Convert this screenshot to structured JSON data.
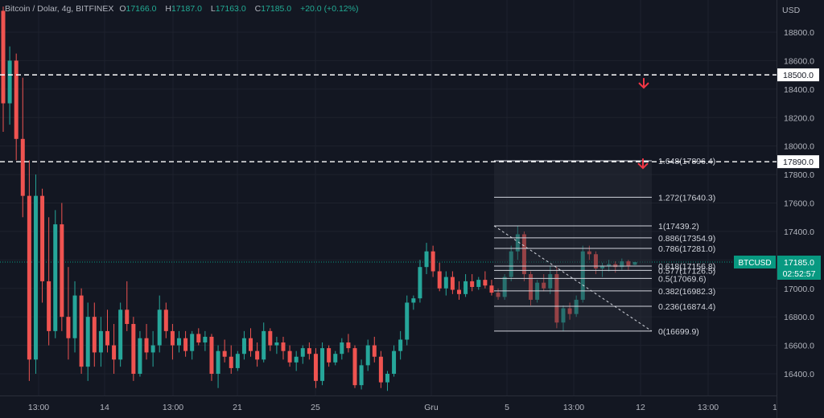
{
  "header": {
    "symbol": "Bitcoin / Dolar, 4g, BITFINEX",
    "o_label": "O",
    "o_value": "17166.0",
    "h_label": "H",
    "h_value": "17187.0",
    "l_label": "L",
    "l_value": "17163.0",
    "c_label": "C",
    "c_value": "17185.0",
    "change": "+20.0 (+0.12%)"
  },
  "currency": "USD",
  "colors": {
    "background": "#131722",
    "grid": "#1e222d",
    "text": "#b2b5be",
    "up": "#26a69a",
    "down": "#ef5350",
    "price_tag": "#089981",
    "alert_arrow": "#f23645",
    "fib": "#d1d4dc"
  },
  "price_axis": {
    "ticks": [
      "18800.0",
      "18600.0",
      "18400.0",
      "18200.0",
      "18000.0",
      "17800.0",
      "17600.0",
      "17400.0",
      "17200.0",
      "17000.0",
      "16800.0",
      "16600.0",
      "16400.0"
    ],
    "current_label": "BTCUSD",
    "current_price": "17185.0",
    "countdown": "02:52:57"
  },
  "time_axis": {
    "labels": [
      "13:00",
      "14",
      "13:00",
      "21",
      "25",
      "Gru",
      "5",
      "13:00",
      "12",
      "13:00"
    ]
  },
  "horizontal_lines": [
    {
      "price": 18500,
      "label": "18500.0"
    },
    {
      "price": 17890,
      "label": "17890.0"
    }
  ],
  "fibonacci": {
    "levels": [
      {
        "label": "1.648(17896.4)",
        "price": 17896.4
      },
      {
        "label": "1.272(17640.3)",
        "price": 17640.3
      },
      {
        "label": "1(17439.2)",
        "price": 17439.2
      },
      {
        "label": "0.886(17354.9)",
        "price": 17354.9
      },
      {
        "label": "0.786(17281.0)",
        "price": 17281.0
      },
      {
        "label": "0.618(17156.8)",
        "price": 17156.8
      },
      {
        "label": "0.5(17069.6)",
        "price": 17069.6
      },
      {
        "label": "0.382(16982.3)",
        "price": 16982.3
      },
      {
        "label": "0.236(16874.4)",
        "price": 16874.4
      },
      {
        "label": "0(16699.9)",
        "price": 16699.9
      }
    ],
    "extra_label": "0.577(17126.5)"
  },
  "chart_data": {
    "type": "candlestick",
    "timeframe": "4g",
    "x_labels": [
      "13:00",
      "14",
      "13:00",
      "21",
      "25",
      "Gru",
      "5",
      "13:00",
      "12",
      "13:00"
    ],
    "ylim": [
      16280,
      18980
    ],
    "candles": [
      [
        18950,
        18980,
        18100,
        18300
      ],
      [
        18300,
        18700,
        18150,
        18600
      ],
      [
        18600,
        18650,
        17900,
        18050
      ],
      [
        18050,
        18480,
        17500,
        17650
      ],
      [
        17650,
        17900,
        16350,
        16500
      ],
      [
        16500,
        17800,
        16400,
        17650
      ],
      [
        17650,
        17700,
        16900,
        17050
      ],
      [
        17050,
        17500,
        16600,
        16700
      ],
      [
        16700,
        17550,
        16650,
        17450
      ],
      [
        17450,
        17600,
        16700,
        16800
      ],
      [
        16800,
        17150,
        16500,
        16650
      ],
      [
        16650,
        17050,
        16550,
        16950
      ],
      [
        16950,
        17000,
        16400,
        16450
      ],
      [
        16450,
        16900,
        16350,
        16800
      ],
      [
        16800,
        16900,
        16450,
        16550
      ],
      [
        16550,
        16800,
        16450,
        16700
      ],
      [
        16700,
        16850,
        16550,
        16600
      ],
      [
        16600,
        16750,
        16400,
        16500
      ],
      [
        16500,
        16900,
        16450,
        16850
      ],
      [
        16850,
        17050,
        16700,
        16750
      ],
      [
        16750,
        16800,
        16350,
        16400
      ],
      [
        16400,
        16700,
        16380,
        16650
      ],
      [
        16650,
        16750,
        16500,
        16550
      ],
      [
        16550,
        16700,
        16450,
        16600
      ],
      [
        16600,
        16950,
        16550,
        16850
      ],
      [
        16850,
        16900,
        16650,
        16700
      ],
      [
        16700,
        16750,
        16500,
        16600
      ],
      [
        16600,
        16700,
        16550,
        16650
      ],
      [
        16650,
        16700,
        16520,
        16560
      ],
      [
        16560,
        16700,
        16500,
        16680
      ],
      [
        16680,
        16720,
        16600,
        16620
      ],
      [
        16620,
        16700,
        16560,
        16660
      ],
      [
        16660,
        16680,
        16350,
        16400
      ],
      [
        16400,
        16600,
        16300,
        16560
      ],
      [
        16560,
        16640,
        16480,
        16520
      ],
      [
        16520,
        16600,
        16400,
        16440
      ],
      [
        16440,
        16560,
        16420,
        16540
      ],
      [
        16540,
        16700,
        16500,
        16650
      ],
      [
        16650,
        16720,
        16520,
        16560
      ],
      [
        16560,
        16620,
        16450,
        16500
      ],
      [
        16500,
        16760,
        16480,
        16700
      ],
      [
        16700,
        16720,
        16560,
        16600
      ],
      [
        16600,
        16660,
        16540,
        16620
      ],
      [
        16620,
        16660,
        16500,
        16560
      ],
      [
        16560,
        16600,
        16450,
        16480
      ],
      [
        16480,
        16560,
        16420,
        16520
      ],
      [
        16520,
        16600,
        16470,
        16580
      ],
      [
        16580,
        16620,
        16500,
        16540
      ],
      [
        16540,
        16580,
        16300,
        16350
      ],
      [
        16350,
        16620,
        16320,
        16580
      ],
      [
        16580,
        16600,
        16450,
        16480
      ],
      [
        16480,
        16560,
        16460,
        16540
      ],
      [
        16540,
        16650,
        16500,
        16620
      ],
      [
        16620,
        16680,
        16550,
        16580
      ],
      [
        16580,
        16600,
        16300,
        16320
      ],
      [
        16320,
        16500,
        16290,
        16460
      ],
      [
        16460,
        16640,
        16420,
        16600
      ],
      [
        16600,
        16660,
        16480,
        16520
      ],
      [
        16520,
        16560,
        16300,
        16340
      ],
      [
        16340,
        16420,
        16280,
        16400
      ],
      [
        16400,
        16600,
        16380,
        16560
      ],
      [
        16560,
        16700,
        16500,
        16640
      ],
      [
        16640,
        16950,
        16600,
        16900
      ],
      [
        16900,
        16950,
        16850,
        16930
      ],
      [
        16930,
        17200,
        16900,
        17150
      ],
      [
        17150,
        17320,
        17100,
        17260
      ],
      [
        17260,
        17300,
        17080,
        17120
      ],
      [
        17120,
        17180,
        16980,
        17000
      ],
      [
        17000,
        17120,
        16950,
        17080
      ],
      [
        17080,
        17120,
        16960,
        16990
      ],
      [
        16990,
        17050,
        16920,
        16960
      ],
      [
        16960,
        17100,
        16940,
        17050
      ],
      [
        17050,
        17100,
        16980,
        17010
      ],
      [
        17010,
        17080,
        16990,
        17060
      ],
      [
        17060,
        17120,
        17000,
        17020
      ],
      [
        17020,
        17060,
        16950,
        16970
      ],
      [
        16970,
        17000,
        16920,
        16940
      ],
      [
        16940,
        17100,
        16920,
        17080
      ],
      [
        17080,
        17300,
        17050,
        17260
      ],
      [
        17260,
        17440,
        17200,
        17380
      ],
      [
        17380,
        17400,
        17050,
        17100
      ],
      [
        17100,
        17120,
        16880,
        16920
      ],
      [
        16920,
        17060,
        16900,
        17040
      ],
      [
        17040,
        17100,
        16980,
        17000
      ],
      [
        17000,
        17160,
        16960,
        17100
      ],
      [
        17100,
        17150,
        16720,
        16760
      ],
      [
        16760,
        16880,
        16700,
        16860
      ],
      [
        16860,
        16900,
        16780,
        16820
      ],
      [
        16820,
        16950,
        16800,
        16920
      ],
      [
        16920,
        17300,
        16900,
        17260
      ],
      [
        17260,
        17300,
        17200,
        17240
      ],
      [
        17240,
        17260,
        17100,
        17140
      ],
      [
        17140,
        17180,
        17080,
        17160
      ],
      [
        17160,
        17200,
        17120,
        17170
      ],
      [
        17170,
        17190,
        17110,
        17150
      ],
      [
        17150,
        17210,
        17130,
        17190
      ],
      [
        17190,
        17200,
        17130,
        17160
      ],
      [
        17166,
        17187,
        17163,
        17185
      ]
    ]
  }
}
